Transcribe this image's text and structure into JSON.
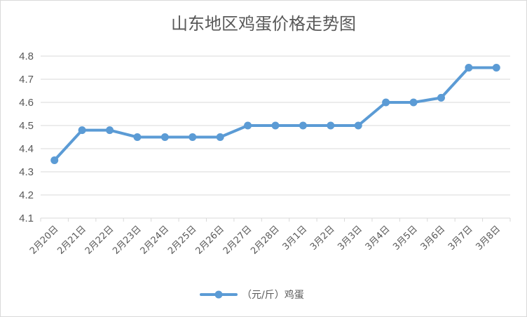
{
  "chart_data": {
    "type": "line",
    "title": "山东地区鸡蛋价格走势图",
    "xlabel": "",
    "ylabel": "",
    "categories": [
      "2月20日",
      "2月21日",
      "2月22日",
      "2月23日",
      "2月24日",
      "2月25日",
      "2月26日",
      "2月27日",
      "2月28日",
      "3月1日",
      "3月2日",
      "3月3日",
      "3月4日",
      "3月5日",
      "3月6日",
      "3月7日",
      "3月8日"
    ],
    "series": [
      {
        "name": "（元/斤）鸡蛋",
        "values": [
          4.35,
          4.48,
          4.48,
          4.45,
          4.45,
          4.45,
          4.45,
          4.5,
          4.5,
          4.5,
          4.5,
          4.5,
          4.6,
          4.6,
          4.62,
          4.75,
          4.75
        ]
      }
    ],
    "ylim": [
      4.1,
      4.8
    ],
    "yticks": [
      "4.1",
      "4.2",
      "4.3",
      "4.4",
      "4.5",
      "4.6",
      "4.7",
      "4.8"
    ],
    "grid": true,
    "legend_position": "bottom",
    "colors": {
      "series": "#5b9bd5",
      "grid": "#d9d9d9",
      "text": "#595959"
    }
  }
}
